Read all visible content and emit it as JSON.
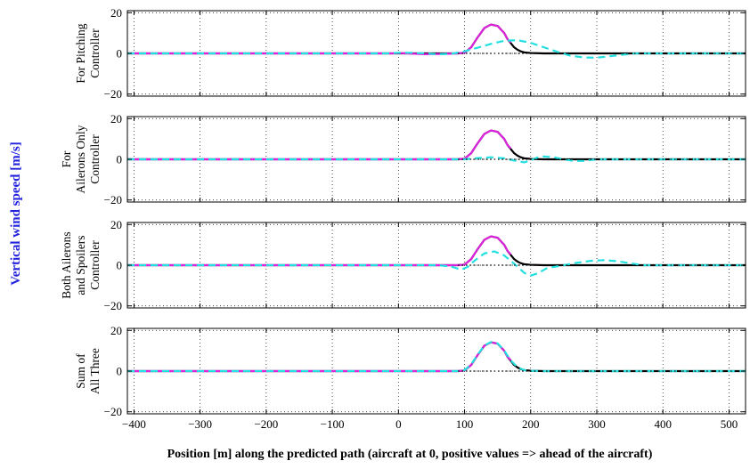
{
  "chart_data": {
    "type": "line",
    "ylabel": "Vertical wind speed [m/s]",
    "ylabel_color": "#2222dd",
    "xlabel": "Position [m] along the predicted path (aircraft at 0, positive values => ahead of the aircraft)",
    "xlim": [
      -410,
      525
    ],
    "x_ticks": [
      -400,
      -300,
      -200,
      -100,
      0,
      100,
      200,
      300,
      400,
      500
    ],
    "ylim": [
      -21,
      21
    ],
    "y_ticks": [
      -20,
      0,
      20
    ],
    "grid": "dotted",
    "colors": {
      "black": "#000000",
      "magenta": "#dd22dd",
      "cyan": "#22e0e0"
    },
    "panels": [
      {
        "label_lines": [
          "For Pitching",
          "Controller"
        ],
        "series": [
          {
            "style": "solid",
            "color": "black",
            "points": [
              [
                -410,
                0
              ],
              [
                90,
                0
              ],
              [
                100,
                0.3
              ],
              [
                110,
                3
              ],
              [
                120,
                8
              ],
              [
                130,
                12.5
              ],
              [
                140,
                14.2
              ],
              [
                150,
                13.5
              ],
              [
                160,
                10
              ],
              [
                165,
                7
              ],
              [
                170,
                5
              ],
              [
                175,
                3
              ],
              [
                180,
                1.8
              ],
              [
                185,
                1
              ],
              [
                190,
                0.5
              ],
              [
                200,
                0.2
              ],
              [
                220,
                0
              ],
              [
                525,
                0
              ]
            ]
          },
          {
            "style": "solid",
            "color": "magenta",
            "points": [
              [
                -410,
                0
              ],
              [
                -10,
                0
              ],
              [
                0,
                0.2
              ],
              [
                20,
                -0.1
              ],
              [
                40,
                -0.4
              ],
              [
                60,
                -0.3
              ],
              [
                80,
                -0.1
              ],
              [
                90,
                0
              ],
              [
                100,
                0.3
              ],
              [
                110,
                3
              ],
              [
                120,
                8
              ],
              [
                130,
                12.5
              ],
              [
                140,
                14.2
              ],
              [
                150,
                13.5
              ],
              [
                160,
                10
              ],
              [
                165,
                7
              ],
              [
                170,
                5.3
              ]
            ]
          },
          {
            "style": "dashed",
            "color": "cyan",
            "points": [
              [
                -410,
                0
              ],
              [
                -20,
                0
              ],
              [
                0,
                0.3
              ],
              [
                20,
                0.3
              ],
              [
                40,
                0
              ],
              [
                60,
                -0.4
              ],
              [
                80,
                -0.2
              ],
              [
                100,
                1
              ],
              [
                120,
                2.8
              ],
              [
                140,
                4.7
              ],
              [
                160,
                6.2
              ],
              [
                180,
                6.5
              ],
              [
                200,
                5.2
              ],
              [
                220,
                3
              ],
              [
                240,
                0.8
              ],
              [
                260,
                -1.1
              ],
              [
                280,
                -2
              ],
              [
                300,
                -2.1
              ],
              [
                320,
                -1.4
              ],
              [
                340,
                -0.6
              ],
              [
                360,
                0
              ],
              [
                525,
                0
              ]
            ]
          },
          {
            "style": "dotted",
            "color": "black",
            "points": [
              [
                90,
                0
              ],
              [
                525,
                0
              ]
            ]
          }
        ]
      },
      {
        "label_lines": [
          "For",
          "Ailerons Only",
          "Controller"
        ],
        "series": [
          {
            "style": "solid",
            "color": "black",
            "points": [
              [
                -410,
                0
              ],
              [
                90,
                0
              ],
              [
                100,
                0.3
              ],
              [
                110,
                3
              ],
              [
                120,
                8
              ],
              [
                130,
                12.5
              ],
              [
                140,
                14.2
              ],
              [
                150,
                13.5
              ],
              [
                160,
                10
              ],
              [
                165,
                7
              ],
              [
                170,
                5
              ],
              [
                175,
                3
              ],
              [
                180,
                1.8
              ],
              [
                185,
                1
              ],
              [
                190,
                0.5
              ],
              [
                200,
                0.2
              ],
              [
                220,
                0
              ],
              [
                525,
                0
              ]
            ]
          },
          {
            "style": "solid",
            "color": "magenta",
            "points": [
              [
                -410,
                0
              ],
              [
                90,
                0
              ],
              [
                100,
                0.3
              ],
              [
                110,
                3
              ],
              [
                120,
                8
              ],
              [
                130,
                12.5
              ],
              [
                140,
                14.2
              ],
              [
                150,
                13.5
              ],
              [
                160,
                10
              ],
              [
                165,
                7
              ],
              [
                170,
                5.3
              ]
            ]
          },
          {
            "style": "dashed",
            "color": "cyan",
            "points": [
              [
                -410,
                0
              ],
              [
                100,
                0
              ],
              [
                120,
                0.6
              ],
              [
                140,
                1
              ],
              [
                160,
                0.5
              ],
              [
                175,
                -0.6
              ],
              [
                190,
                -1.5
              ],
              [
                200,
                -0.6
              ],
              [
                210,
                0.9
              ],
              [
                220,
                1.4
              ],
              [
                235,
                1
              ],
              [
                250,
                0
              ],
              [
                265,
                -0.8
              ],
              [
                280,
                -0.8
              ],
              [
                300,
                0
              ],
              [
                525,
                0
              ]
            ]
          },
          {
            "style": "dotted",
            "color": "black",
            "points": [
              [
                90,
                0
              ],
              [
                525,
                0
              ]
            ]
          }
        ]
      },
      {
        "label_lines": [
          "Both Ailerons",
          "and Spoilers",
          "Controller"
        ],
        "series": [
          {
            "style": "solid",
            "color": "black",
            "points": [
              [
                -410,
                0
              ],
              [
                90,
                0
              ],
              [
                100,
                0.3
              ],
              [
                110,
                3
              ],
              [
                120,
                8
              ],
              [
                130,
                12.5
              ],
              [
                140,
                14.2
              ],
              [
                150,
                13.5
              ],
              [
                160,
                10
              ],
              [
                165,
                7
              ],
              [
                170,
                5
              ],
              [
                175,
                3
              ],
              [
                180,
                1.8
              ],
              [
                185,
                1
              ],
              [
                190,
                0.5
              ],
              [
                200,
                0.2
              ],
              [
                220,
                0
              ],
              [
                525,
                0
              ]
            ]
          },
          {
            "style": "solid",
            "color": "magenta",
            "points": [
              [
                -410,
                0
              ],
              [
                90,
                0
              ],
              [
                100,
                0.3
              ],
              [
                110,
                3
              ],
              [
                120,
                8
              ],
              [
                130,
                12.5
              ],
              [
                140,
                14.2
              ],
              [
                150,
                13.5
              ],
              [
                160,
                10
              ],
              [
                165,
                7
              ],
              [
                170,
                5.3
              ]
            ]
          },
          {
            "style": "dashed",
            "color": "cyan",
            "points": [
              [
                -410,
                0
              ],
              [
                60,
                0
              ],
              [
                80,
                -0.7
              ],
              [
                95,
                -2.2
              ],
              [
                105,
                -0.8
              ],
              [
                115,
                2.2
              ],
              [
                130,
                5.8
              ],
              [
                145,
                6.8
              ],
              [
                160,
                4.8
              ],
              [
                175,
                0.7
              ],
              [
                190,
                -3.7
              ],
              [
                200,
                -5.1
              ],
              [
                210,
                -4.1
              ],
              [
                225,
                -1.4
              ],
              [
                250,
                0
              ],
              [
                270,
                1.2
              ],
              [
                290,
                2.1
              ],
              [
                310,
                2.5
              ],
              [
                330,
                2
              ],
              [
                350,
                1
              ],
              [
                370,
                0
              ],
              [
                525,
                0
              ]
            ]
          },
          {
            "style": "dotted",
            "color": "black",
            "points": [
              [
                90,
                0
              ],
              [
                525,
                0
              ]
            ]
          }
        ]
      },
      {
        "label_lines": [
          "Sum of",
          "All Three"
        ],
        "series": [
          {
            "style": "solid",
            "color": "black",
            "points": [
              [
                -410,
                0
              ],
              [
                90,
                0
              ],
              [
                100,
                0.3
              ],
              [
                110,
                3
              ],
              [
                120,
                8
              ],
              [
                130,
                12.5
              ],
              [
                140,
                14.2
              ],
              [
                150,
                13.5
              ],
              [
                160,
                10
              ],
              [
                165,
                7
              ],
              [
                170,
                5
              ],
              [
                175,
                3
              ],
              [
                180,
                1.8
              ],
              [
                185,
                1
              ],
              [
                190,
                0.5
              ],
              [
                200,
                0.2
              ],
              [
                220,
                0
              ],
              [
                525,
                0
              ]
            ]
          },
          {
            "style": "solid",
            "color": "magenta",
            "points": [
              [
                -410,
                0
              ],
              [
                90,
                0
              ],
              [
                100,
                0.3
              ],
              [
                110,
                3
              ],
              [
                120,
                8
              ],
              [
                130,
                12.5
              ],
              [
                140,
                14.2
              ],
              [
                150,
                13.5
              ],
              [
                160,
                10
              ],
              [
                165,
                7
              ],
              [
                170,
                5.3
              ]
            ]
          },
          {
            "style": "dashed",
            "color": "cyan",
            "points": [
              [
                -410,
                0
              ],
              [
                90,
                0
              ],
              [
                100,
                0.5
              ],
              [
                110,
                3.3
              ],
              [
                120,
                8.2
              ],
              [
                130,
                12.6
              ],
              [
                140,
                14.3
              ],
              [
                150,
                13.6
              ],
              [
                160,
                10.1
              ],
              [
                170,
                5.2
              ],
              [
                180,
                1.9
              ],
              [
                190,
                0.5
              ],
              [
                200,
                0.1
              ],
              [
                220,
                0
              ],
              [
                525,
                0
              ]
            ]
          },
          {
            "style": "dotted",
            "color": "black",
            "points": [
              [
                90,
                0
              ],
              [
                525,
                0
              ]
            ]
          }
        ]
      }
    ]
  }
}
